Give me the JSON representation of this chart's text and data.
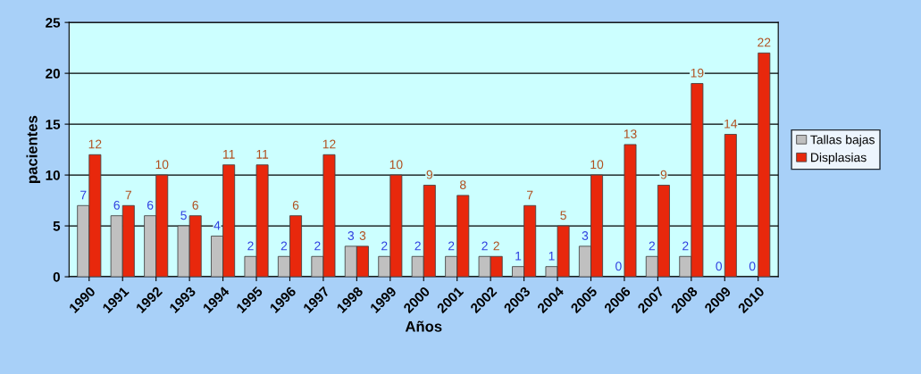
{
  "chart_data": {
    "type": "bar",
    "xlabel": "Años",
    "ylabel": "pacientes",
    "categories": [
      "1990",
      "1991",
      "1992",
      "1993",
      "1994",
      "1995",
      "1996",
      "1997",
      "1998",
      "1999",
      "2000",
      "2001",
      "2002",
      "2003",
      "2004",
      "2005",
      "2006",
      "2007",
      "2008",
      "2009",
      "2010"
    ],
    "series": [
      {
        "name": "Tallas bajas",
        "color": "#c0c0c0",
        "values": [
          7,
          6,
          6,
          5,
          4,
          2,
          2,
          2,
          3,
          2,
          2,
          2,
          2,
          1,
          1,
          3,
          0,
          2,
          2,
          0,
          0
        ]
      },
      {
        "name": "Displasias",
        "color": "#e8280c",
        "values": [
          12,
          7,
          10,
          6,
          11,
          11,
          6,
          12,
          3,
          10,
          9,
          8,
          2,
          7,
          5,
          10,
          13,
          9,
          19,
          14,
          22
        ]
      }
    ],
    "ylim": [
      0,
      25
    ],
    "yticks": [
      0,
      5,
      10,
      15,
      20,
      25
    ],
    "grid": "y",
    "legend": "right",
    "data_labels": true
  }
}
